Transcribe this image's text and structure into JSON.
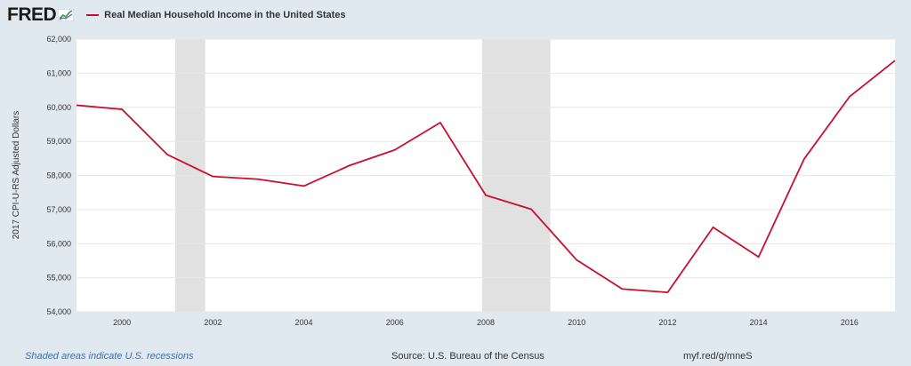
{
  "header": {
    "logo_text": "FRED",
    "logo_icon": "chart-trend-icon",
    "legend_label": "Real Median Household Income in the United States",
    "series_color": "#c8102e"
  },
  "footer": {
    "note": "Shaded areas indicate U.S. recessions",
    "source": "Source: U.S. Bureau of the Census",
    "url": "myf.red/g/mneS"
  },
  "chart_data": {
    "type": "line",
    "ylabel": "2017 CPI-U-RS Adjusted Dollars",
    "xlabel": "",
    "xlim": [
      1999,
      2017
    ],
    "ylim": [
      54000,
      62000
    ],
    "xticks": [
      2000,
      2002,
      2004,
      2006,
      2008,
      2010,
      2012,
      2014,
      2016
    ],
    "yticks": [
      54000,
      55000,
      56000,
      57000,
      58000,
      59000,
      60000,
      61000,
      62000
    ],
    "ytick_labels": [
      "54,000",
      "55,000",
      "56,000",
      "57,000",
      "58,000",
      "59,000",
      "60,000",
      "61,000",
      "62,000"
    ],
    "grid": true,
    "recessions": [
      [
        2001.17,
        2001.83
      ],
      [
        2007.92,
        2009.42
      ]
    ],
    "series": [
      {
        "color": "#c8102e",
        "x": [
          1999,
          2000,
          2001,
          2002,
          2003,
          2004,
          2005,
          2006,
          2007,
          2008,
          2009,
          2010,
          2011,
          2012,
          2013,
          2014,
          2015,
          2016,
          2017
        ],
        "y": [
          60060,
          59940,
          58610,
          57970,
          57890,
          57690,
          58290,
          58750,
          59550,
          57420,
          57010,
          55520,
          54670,
          54570,
          56480,
          55610,
          58480,
          60310,
          61370
        ]
      }
    ]
  }
}
